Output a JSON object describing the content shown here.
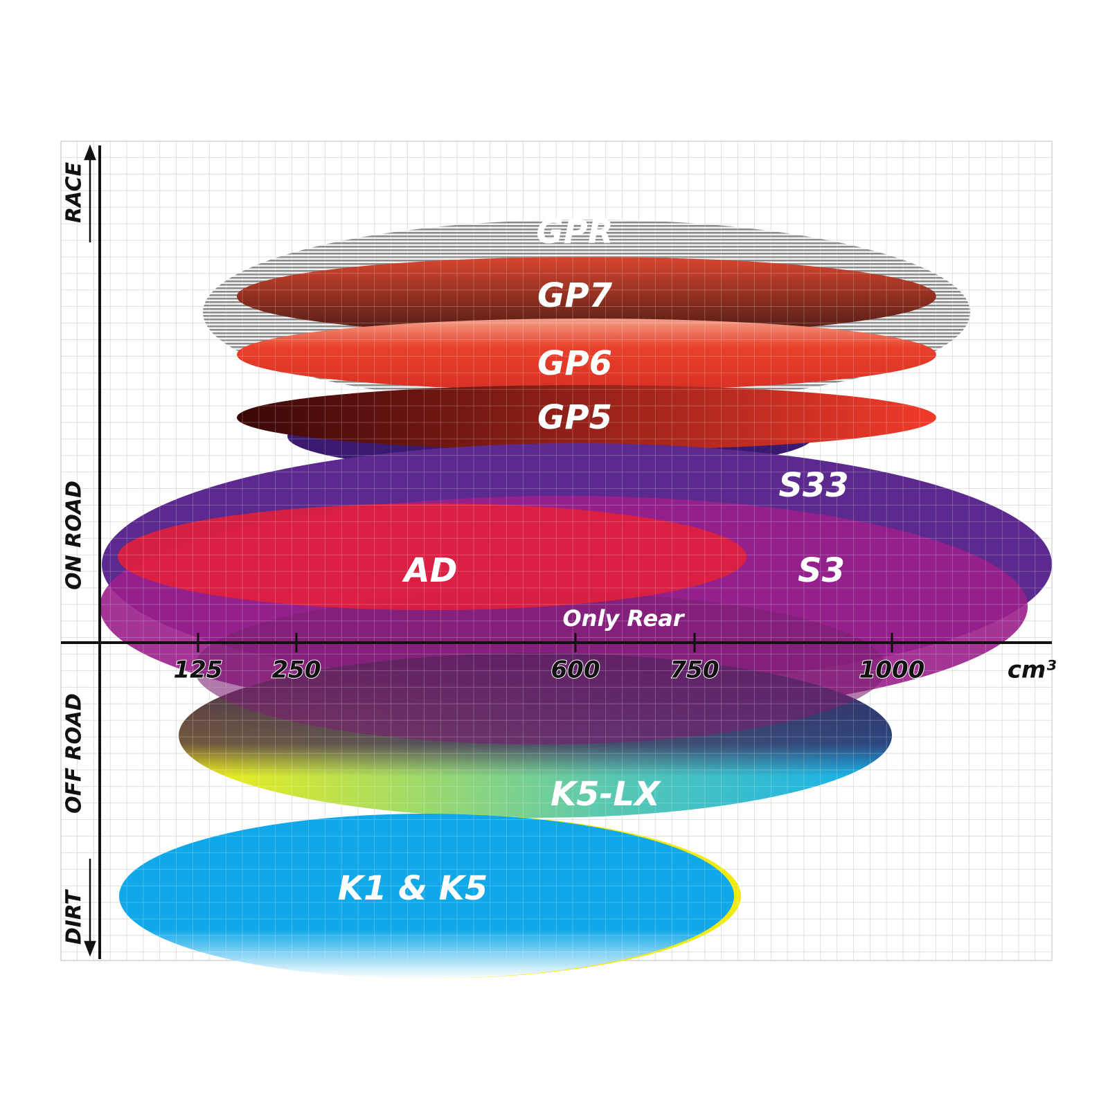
{
  "axis_labels": {
    "race": "RACE",
    "on_road": "ON ROAD",
    "off_road": "OFF ROAD",
    "dirt": "DIRT"
  },
  "x_ticks": [
    "125",
    "250",
    "600",
    "750",
    "1000"
  ],
  "x_unit": "cm³",
  "products": [
    {
      "label": "GPR"
    },
    {
      "label": "GP7"
    },
    {
      "label": "GP6"
    },
    {
      "label": "GP5"
    },
    {
      "label": "S33"
    },
    {
      "label": "S3"
    },
    {
      "label": "AD"
    },
    {
      "label": "K5-LX"
    },
    {
      "label": "K1 & K5"
    }
  ],
  "annotation": "Only Rear"
}
